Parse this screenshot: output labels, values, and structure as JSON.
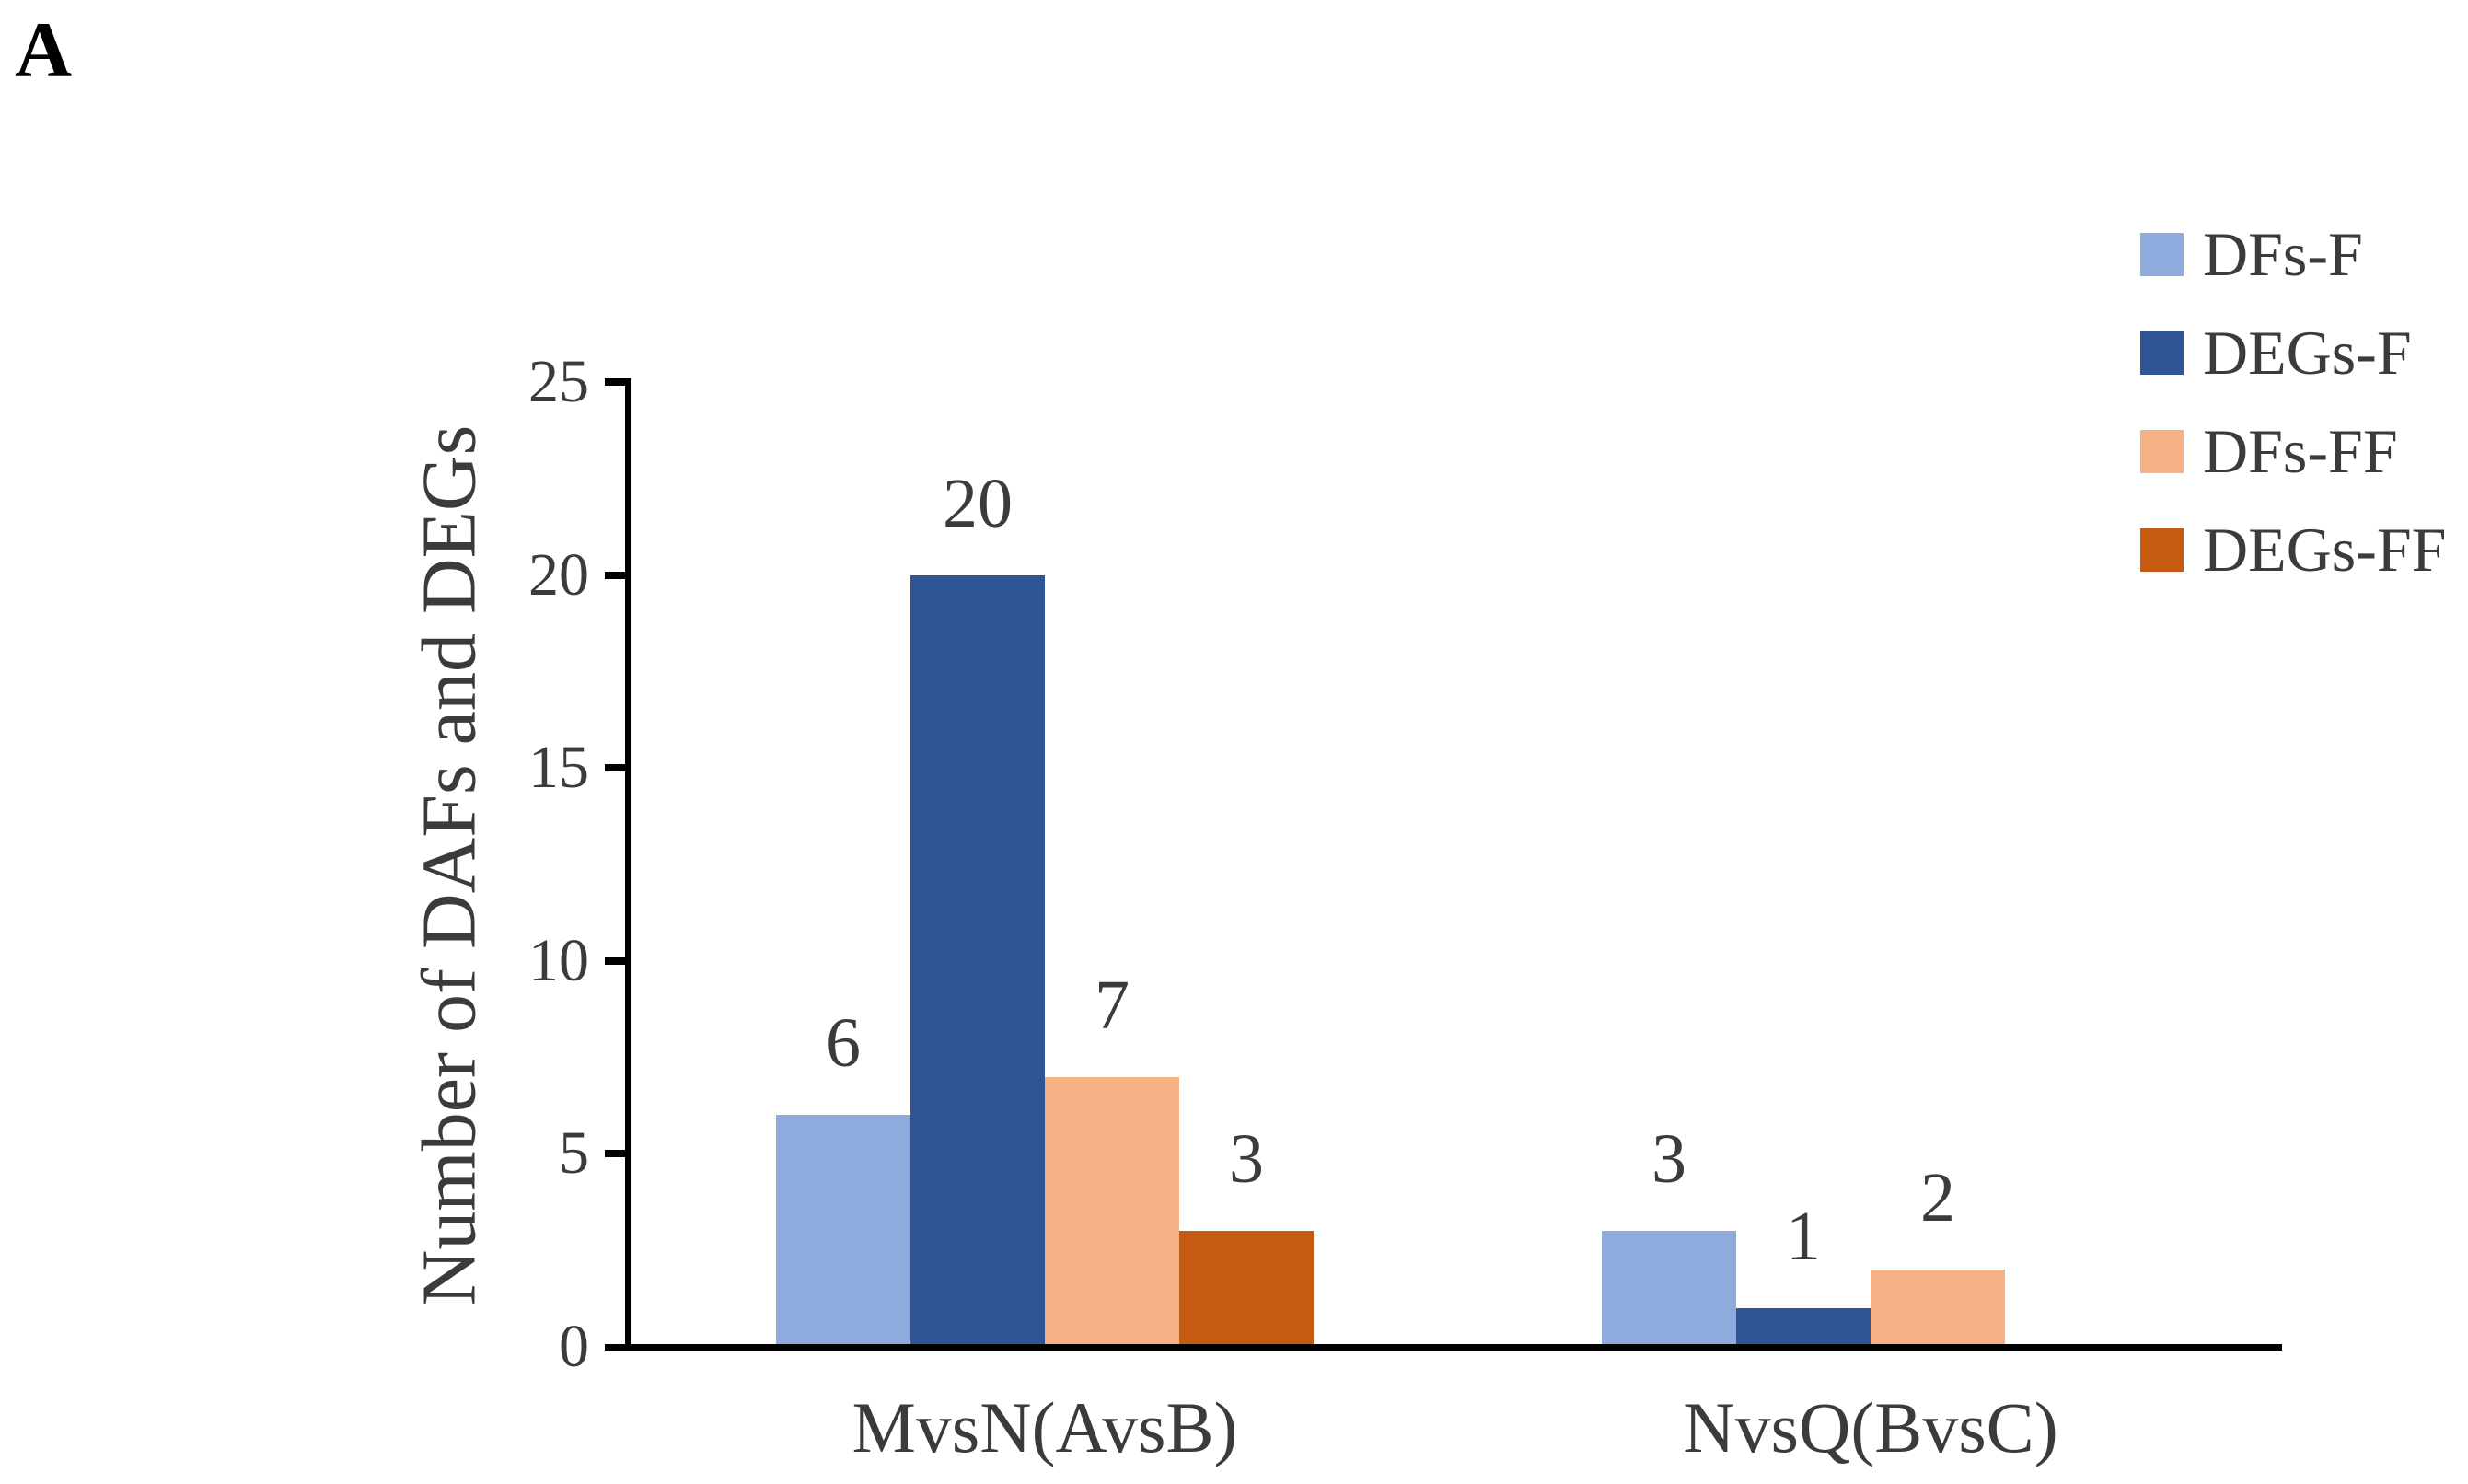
{
  "panel_label": "A",
  "chart_data": {
    "type": "bar",
    "title": "",
    "xlabel": "",
    "ylabel": "Number of DAFs and DEGs",
    "ylim": [
      0,
      25
    ],
    "yticks": [
      0,
      5,
      10,
      15,
      20,
      25
    ],
    "grid": false,
    "legend_position": "top-right",
    "bar_value_labels": true,
    "zero_value_bars_hidden": true,
    "categories": [
      "MvsN(AvsB)",
      "NvsQ(BvsC)"
    ],
    "series": [
      {
        "name": "DFs-F",
        "color": "#8FAADC",
        "values": [
          6,
          3
        ]
      },
      {
        "name": "DEGs-F",
        "color": "#2F5597",
        "values": [
          20,
          1
        ]
      },
      {
        "name": "DFs-FF",
        "color": "#F4B183",
        "values": [
          7,
          2
        ]
      },
      {
        "name": "DEGs-FF",
        "color": "#C55A11",
        "values": [
          3,
          0
        ]
      }
    ]
  },
  "styles": {
    "axis_color": "#000000",
    "text_color": "#3B3B3B",
    "background": "#FFFFFF"
  }
}
